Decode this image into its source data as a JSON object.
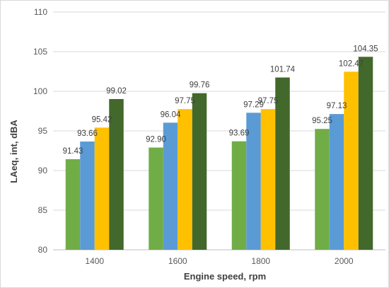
{
  "chart_data": {
    "type": "bar",
    "categories": [
      "1400",
      "1600",
      "1800",
      "2000"
    ],
    "series": [
      {
        "values": [
          91.43,
          92.9,
          93.69,
          95.25
        ],
        "labels": [
          "91.43",
          "92.90",
          "93.69",
          "95.25"
        ],
        "color": "#70ad47"
      },
      {
        "values": [
          93.66,
          96.04,
          97.29,
          97.13
        ],
        "labels": [
          "93.66",
          "96.04",
          "97.29",
          "97.13"
        ],
        "color": "#5b9bd5"
      },
      {
        "values": [
          95.42,
          97.75,
          97.75,
          102.47
        ],
        "labels": [
          "95.42",
          "97.75",
          "97.75",
          "102.47"
        ],
        "color": "#ffc000"
      },
      {
        "values": [
          99.02,
          99.76,
          101.74,
          104.35
        ],
        "labels": [
          "99.02",
          "99.76",
          "101.74",
          "104.35"
        ],
        "color": "#43682b"
      }
    ],
    "xlabel": "Engine speed, rpm",
    "ylabel": "LAeq, int, dBA",
    "ylim": [
      80,
      110
    ],
    "yticks": [
      "80",
      "85",
      "90",
      "95",
      "100",
      "105",
      "110"
    ],
    "grid": true,
    "legend": "none"
  }
}
